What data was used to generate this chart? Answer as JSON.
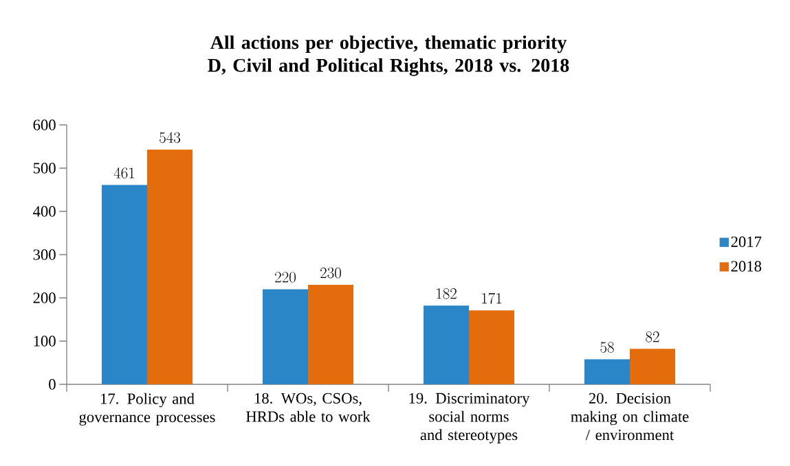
{
  "chart_data": {
    "type": "bar",
    "title": "All actions per objective, thematic priority D, Civil and Political Rights, 2018 vs. 2018",
    "categories": [
      "17. Policy and governance processes",
      "18. WOs, CSOs, HRDs able to work",
      "19. Discriminatory social norms and stereotypes",
      "20. Decision making on climate / environment"
    ],
    "series": [
      {
        "name": "2017",
        "color": "#2a86c7",
        "values": [
          461,
          220,
          182,
          58
        ]
      },
      {
        "name": "2018",
        "color": "#e36c0d",
        "values": [
          543,
          230,
          171,
          82
        ]
      }
    ],
    "ylim": [
      0,
      600
    ],
    "yticks": [
      0,
      100,
      200,
      300,
      400,
      500,
      600
    ],
    "grid": false,
    "legend": "right",
    "data_labels": true
  }
}
